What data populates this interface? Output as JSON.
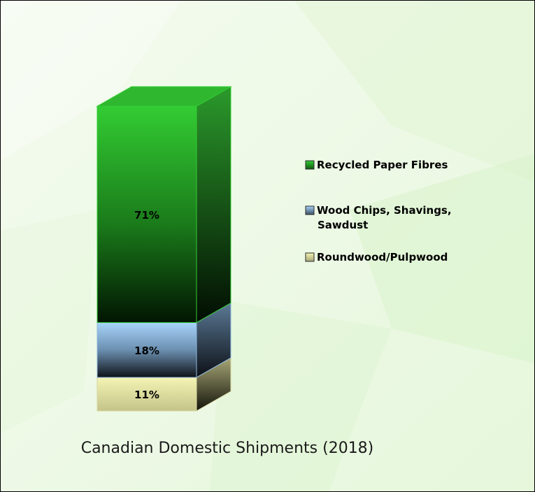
{
  "chart_data": {
    "type": "bar",
    "stacked": true,
    "three_d": true,
    "title": "Canadian Domestic Shipments (2018)",
    "categories": [
      ""
    ],
    "series": [
      {
        "name": "Roundwood/Pulpwood",
        "values": [
          11
        ],
        "label": "11%",
        "color": "#eeeeaa"
      },
      {
        "name": "Wood Chips, Shavings, Sawdust",
        "values": [
          18
        ],
        "label": "18%",
        "color": "#9ecbf4"
      },
      {
        "name": "Recycled Paper Fibres",
        "values": [
          71
        ],
        "label": "71%",
        "color": "#33cc33"
      }
    ],
    "legend_order": [
      {
        "lines": [
          "Recycled Paper Fibres"
        ],
        "color": "#33cc33"
      },
      {
        "lines": [
          "Wood Chips, Shavings,",
          "Sawdust"
        ],
        "color": "#9ecbf4"
      },
      {
        "lines": [
          "Roundwood/Pulpwood"
        ],
        "color": "#eeeeaa"
      }
    ],
    "legend_position": "right",
    "grid": false,
    "xlabel": "",
    "ylabel": ""
  }
}
